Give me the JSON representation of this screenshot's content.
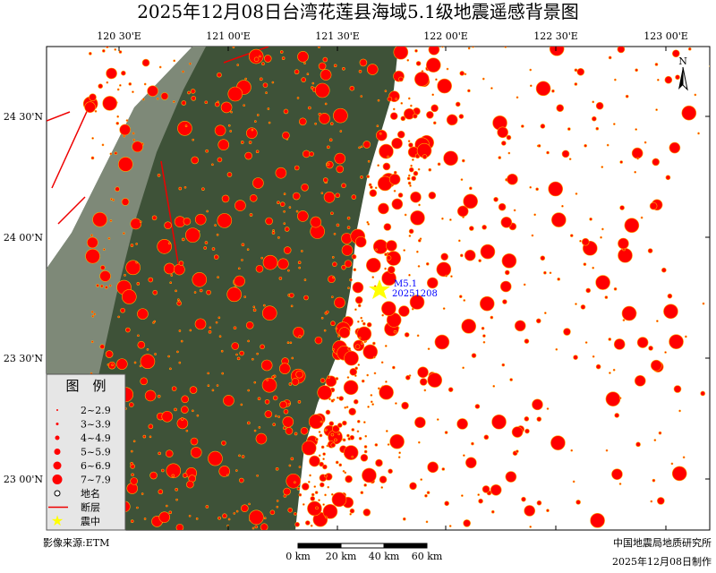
{
  "header": {
    "title": "2025年12月08日台湾花莲县海域5.1级地震遥感背景图"
  },
  "map": {
    "lon_labels": [
      "120 30'E",
      "121 00'E",
      "121 30'E",
      "122 00'E",
      "122 30'E",
      "123 00'E"
    ],
    "lat_labels": [
      "24 30'N",
      "24 00'N",
      "23 30'N",
      "23 00'N"
    ],
    "north": "N",
    "epicenter": {
      "magnitude": "M5.1",
      "date": "20251208"
    }
  },
  "legend": {
    "title": "图　例",
    "items": [
      "2~2.9",
      "3~3.9",
      "4~4.9",
      "5~5.9",
      "6~6.9",
      "7~7.9",
      "地名",
      "断层",
      "震中"
    ]
  },
  "footer": {
    "source": "影像来源:ETM",
    "scale": [
      "0 km",
      "20 km",
      "40 km",
      "60 km"
    ],
    "institute": "中国地震局地质研究所",
    "made": "2025年12月08日制作"
  }
}
